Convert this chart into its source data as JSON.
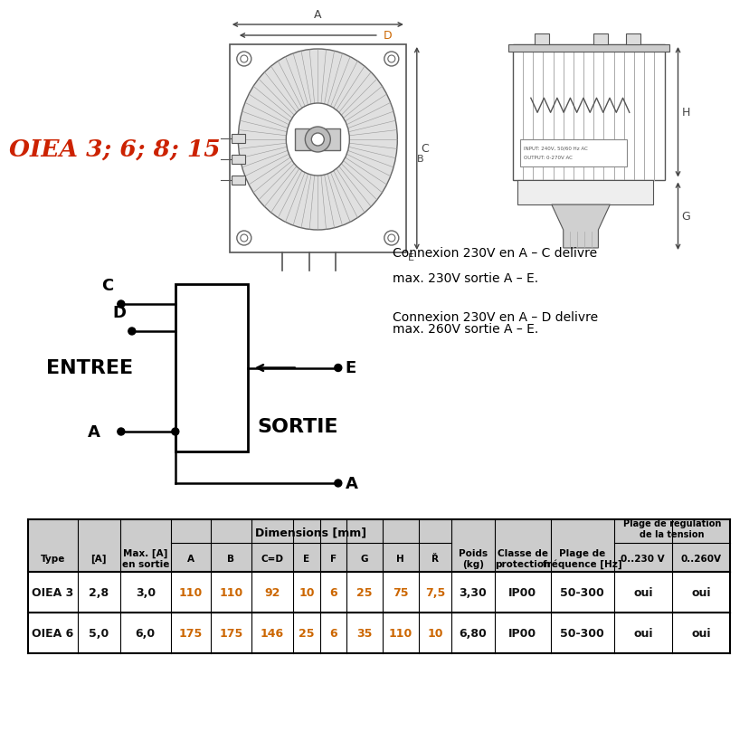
{
  "title_text": "OIEA 3; 6; 8; 15",
  "title_color": "#cc2200",
  "bg_color": "#ffffff",
  "entree_label": "ENTREE",
  "sortie_label": "SORTIE",
  "conn_lines": [
    "Connexion 230V en A – C delivre",
    "max. 230V sortie A – E.",
    "Connexion 230V en A – D delivre",
    "max. 260V sortie A – E."
  ],
  "table_header_bg": "#cccccc",
  "table_orange": "#cc6600",
  "table_black": "#111111",
  "rows": [
    [
      "OIEA 3",
      "2,8",
      "3,0",
      "110",
      "110",
      "92",
      "10",
      "6",
      "25",
      "75",
      "7,5",
      "3,30",
      "IP00",
      "50-300",
      "oui",
      "oui"
    ],
    [
      "OIEA 6",
      "5,0",
      "6,0",
      "175",
      "175",
      "146",
      "25",
      "6",
      "35",
      "110",
      "10",
      "6,80",
      "IP00",
      "50-300",
      "oui",
      "oui"
    ]
  ]
}
